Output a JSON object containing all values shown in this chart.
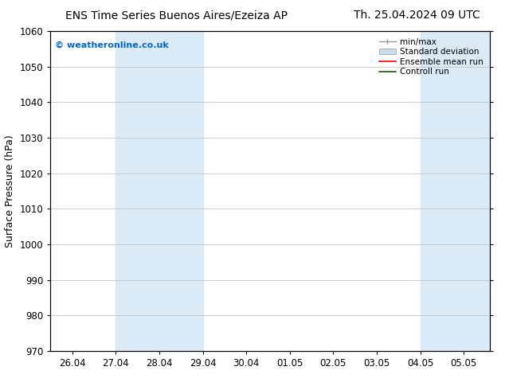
{
  "title_left": "ENS Time Series Buenos Aires/Ezeiza AP",
  "title_right": "Th. 25.04.2024 09 UTC",
  "ylabel": "Surface Pressure (hPa)",
  "ylim": [
    970,
    1060
  ],
  "yticks": [
    970,
    980,
    990,
    1000,
    1010,
    1020,
    1030,
    1040,
    1050,
    1060
  ],
  "x_labels": [
    "26.04",
    "27.04",
    "28.04",
    "29.04",
    "30.04",
    "01.05",
    "02.05",
    "03.05",
    "04.05",
    "05.05"
  ],
  "x_positions": [
    0,
    1,
    2,
    3,
    4,
    5,
    6,
    7,
    8,
    9
  ],
  "xlim": [
    -0.5,
    9.6
  ],
  "shaded_regions": [
    {
      "x_start": 1.0,
      "x_end": 3.0,
      "color": "#daeaf6"
    },
    {
      "x_start": 8.0,
      "x_end": 9.6,
      "color": "#daeaf6"
    }
  ],
  "watermark": "© weatheronline.co.uk",
  "watermark_color": "#0066cc",
  "background_color": "#ffffff",
  "plot_background": "#ffffff",
  "legend_labels": [
    "min/max",
    "Standard deviation",
    "Ensemble mean run",
    "Controll run"
  ],
  "legend_colors": [
    "#999999",
    "#c8dcea",
    "#ff0000",
    "#006600"
  ],
  "title_fontsize": 10,
  "axis_label_fontsize": 9,
  "tick_fontsize": 8.5,
  "legend_fontsize": 7.5,
  "watermark_fontsize": 8
}
